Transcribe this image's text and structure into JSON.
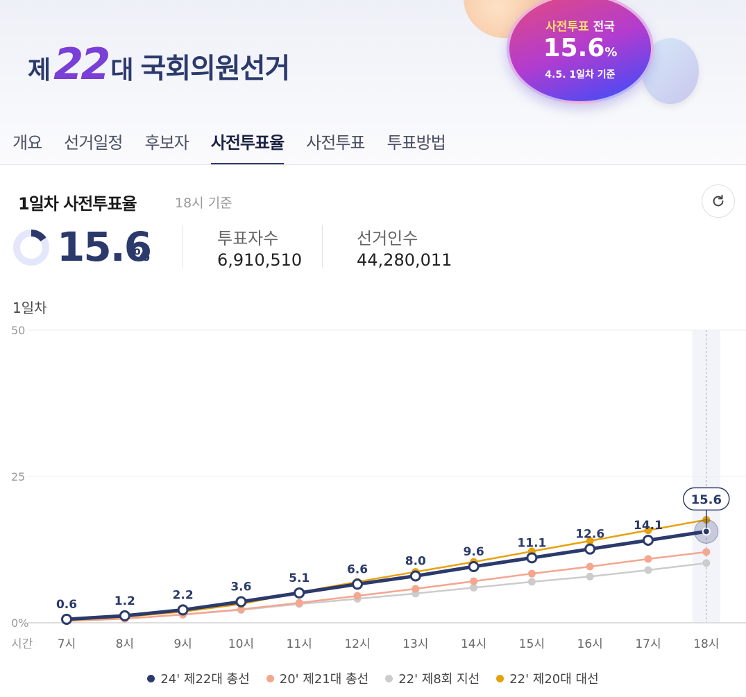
{
  "header": {
    "logo": {
      "prefix": "제",
      "number": "22",
      "suffix": "대",
      "name": "국회의원선거"
    },
    "badge": {
      "label_highlight": "사전투표",
      "label_rest": "전국",
      "value": "15.6",
      "unit": "%",
      "note": "4.5. 1일차 기준"
    }
  },
  "tabs": [
    {
      "label": "개요"
    },
    {
      "label": "선거일정"
    },
    {
      "label": "후보자"
    },
    {
      "label": "사전투표율",
      "active": true
    },
    {
      "label": "사전투표"
    },
    {
      "label": "투표방법"
    }
  ],
  "summary": {
    "title": "1일차 사전투표율",
    "subtitle": "18시 기준",
    "rate": "15.6",
    "rate_unit": "%",
    "rate_fraction": 0.156,
    "voters_label": "투표자수",
    "voters": "6,910,510",
    "electorate_label": "선거인수",
    "electorate": "44,280,011",
    "refresh_icon": "refresh-icon"
  },
  "chart_data": {
    "type": "line",
    "title": "1일차",
    "xlabel": "시간",
    "categories": [
      "7시",
      "8시",
      "9시",
      "10시",
      "11시",
      "12시",
      "13시",
      "14시",
      "15시",
      "16시",
      "17시",
      "18시"
    ],
    "ylim": [
      0,
      50
    ],
    "yticks": [
      "0%",
      "25",
      "50"
    ],
    "ytick_values": [
      0,
      25,
      50
    ],
    "grid": true,
    "legend_position": "bottom",
    "highlight_category": "18시",
    "highlight_label": "15.6",
    "series": [
      {
        "name": "24' 제22대 총선",
        "color": "#2b3a6b",
        "values": [
          0.6,
          1.2,
          2.2,
          3.6,
          5.1,
          6.6,
          8.0,
          9.6,
          11.1,
          12.6,
          14.1,
          15.6
        ],
        "labeled": true
      },
      {
        "name": "20' 제21대 총선",
        "color": "#f4a68f",
        "values": [
          0.3,
          0.7,
          1.4,
          2.3,
          3.4,
          4.6,
          5.8,
          7.1,
          8.4,
          9.6,
          10.9,
          12.1
        ]
      },
      {
        "name": "22' 제8회 지선",
        "color": "#cccccc",
        "values": [
          0.3,
          0.7,
          1.4,
          2.2,
          3.2,
          4.1,
          5.0,
          6.0,
          7.0,
          7.9,
          9.0,
          10.2
        ]
      },
      {
        "name": "22' 제20대 대선",
        "color": "#e8a10c",
        "values": [
          0.4,
          1.0,
          1.9,
          3.2,
          5.2,
          7.0,
          8.7,
          10.4,
          12.2,
          14.0,
          15.8,
          17.6
        ]
      }
    ]
  }
}
